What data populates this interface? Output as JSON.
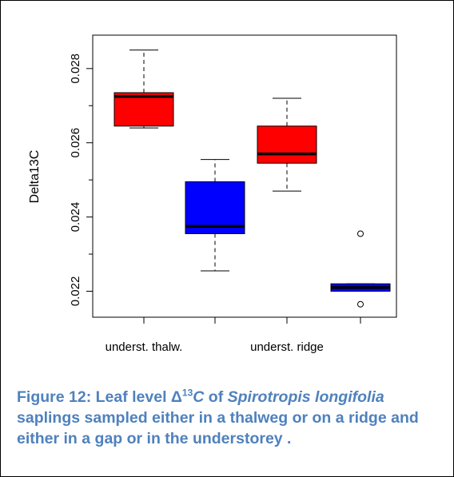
{
  "chart_data": {
    "type": "box",
    "ylabel": "Delta13C",
    "xlabel": "",
    "ylim": [
      0.0213,
      0.0289
    ],
    "y_ticks": [
      "0.022",
      "0.024",
      "0.026",
      "0.028"
    ],
    "y_tick_values": [
      0.022,
      0.024,
      0.026,
      0.028
    ],
    "x_tick_labels": [
      "underst. thalw.",
      "",
      "underst. ridge",
      ""
    ],
    "groups": [
      {
        "label": "underst. thalw.",
        "color": "#ff0000",
        "whisker_low": 0.0264,
        "q1": 0.02645,
        "median": 0.02725,
        "q3": 0.02735,
        "whisker_high": 0.0285,
        "outliers": []
      },
      {
        "label": "",
        "color": "#0000ff",
        "whisker_low": 0.02255,
        "q1": 0.02355,
        "median": 0.02375,
        "q3": 0.02495,
        "whisker_high": 0.02555,
        "outliers": []
      },
      {
        "label": "underst. ridge",
        "color": "#ff0000",
        "whisker_low": 0.0247,
        "q1": 0.02545,
        "median": 0.0257,
        "q3": 0.02645,
        "whisker_high": 0.0272,
        "outliers": []
      },
      {
        "label": "",
        "color": "#0000ff",
        "whisker_low": 0.022,
        "q1": 0.022,
        "median": 0.0221,
        "q3": 0.0222,
        "whisker_high": 0.0222,
        "outliers": [
          0.02355,
          0.02165
        ]
      }
    ]
  },
  "caption": {
    "prefix": "Figure 12: Leaf level Δ",
    "superscript": "13",
    "symbol": "C",
    "of": " of ",
    "species": "Spirotropis longifolia",
    "rest": " saplings sampled either in a thalweg or on a ridge and either in a gap or in the understorey ."
  }
}
